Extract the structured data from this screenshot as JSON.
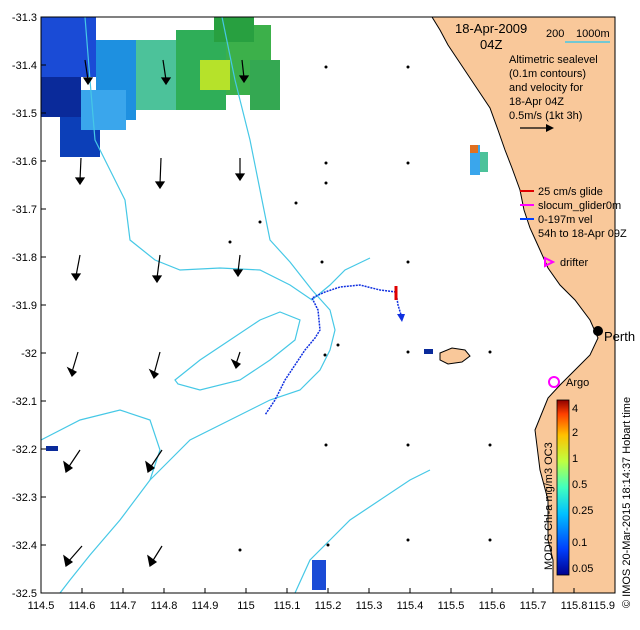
{
  "map": {
    "date": "18-Apr-2009",
    "time": "04Z",
    "bathy_legend": {
      "c1": "200",
      "c2": "1000m"
    },
    "altimetry_lines": [
      "Altimetric sealevel",
      "(0.1m contours)",
      "and velocity for",
      "18-Apr 04Z",
      "0.5m/s (1kt 3h)"
    ],
    "glider_legend": [
      {
        "text": "25 cm/s glide",
        "color": "#e00000"
      },
      {
        "text": "slocum_glider0m",
        "color": "#ff00ff"
      },
      {
        "text": "0-197m vel",
        "color": "#0040ff"
      },
      {
        "text": "54h to 18-Apr 09Z",
        "color": "#000000"
      }
    ],
    "drifter_label": "drifter",
    "city_label": "Perth",
    "argo_label": "Argo",
    "side_credit": "© IMOS 20-Mar-2015 18:14:37 Hobart time",
    "colorbar_title": "MODIS Chl-a mg/m3 OC3",
    "colorbar_ticks": [
      "4",
      "2",
      "1",
      "0.5",
      "0.25",
      "0.1",
      "0.05"
    ],
    "x_ticks": [
      "114.5",
      "114.6",
      "114.7",
      "114.8",
      "114.9",
      "115",
      "115.1",
      "115.2",
      "115.3",
      "115.4",
      "115.5",
      "115.6",
      "115.7",
      "115.8",
      "115.9"
    ],
    "y_ticks": [
      "-31.3",
      "-31.4",
      "-31.5",
      "-31.6",
      "-31.7",
      "-31.8",
      "-31.9",
      "-32",
      "-32.1",
      "-32.2",
      "-32.3",
      "-32.4",
      "-32.5"
    ],
    "colors": {
      "land": "#f9c89a",
      "bathy": "#46c8e6",
      "velocity": "#000000",
      "track": "#1030e0",
      "argo": "#ff00ff"
    }
  }
}
